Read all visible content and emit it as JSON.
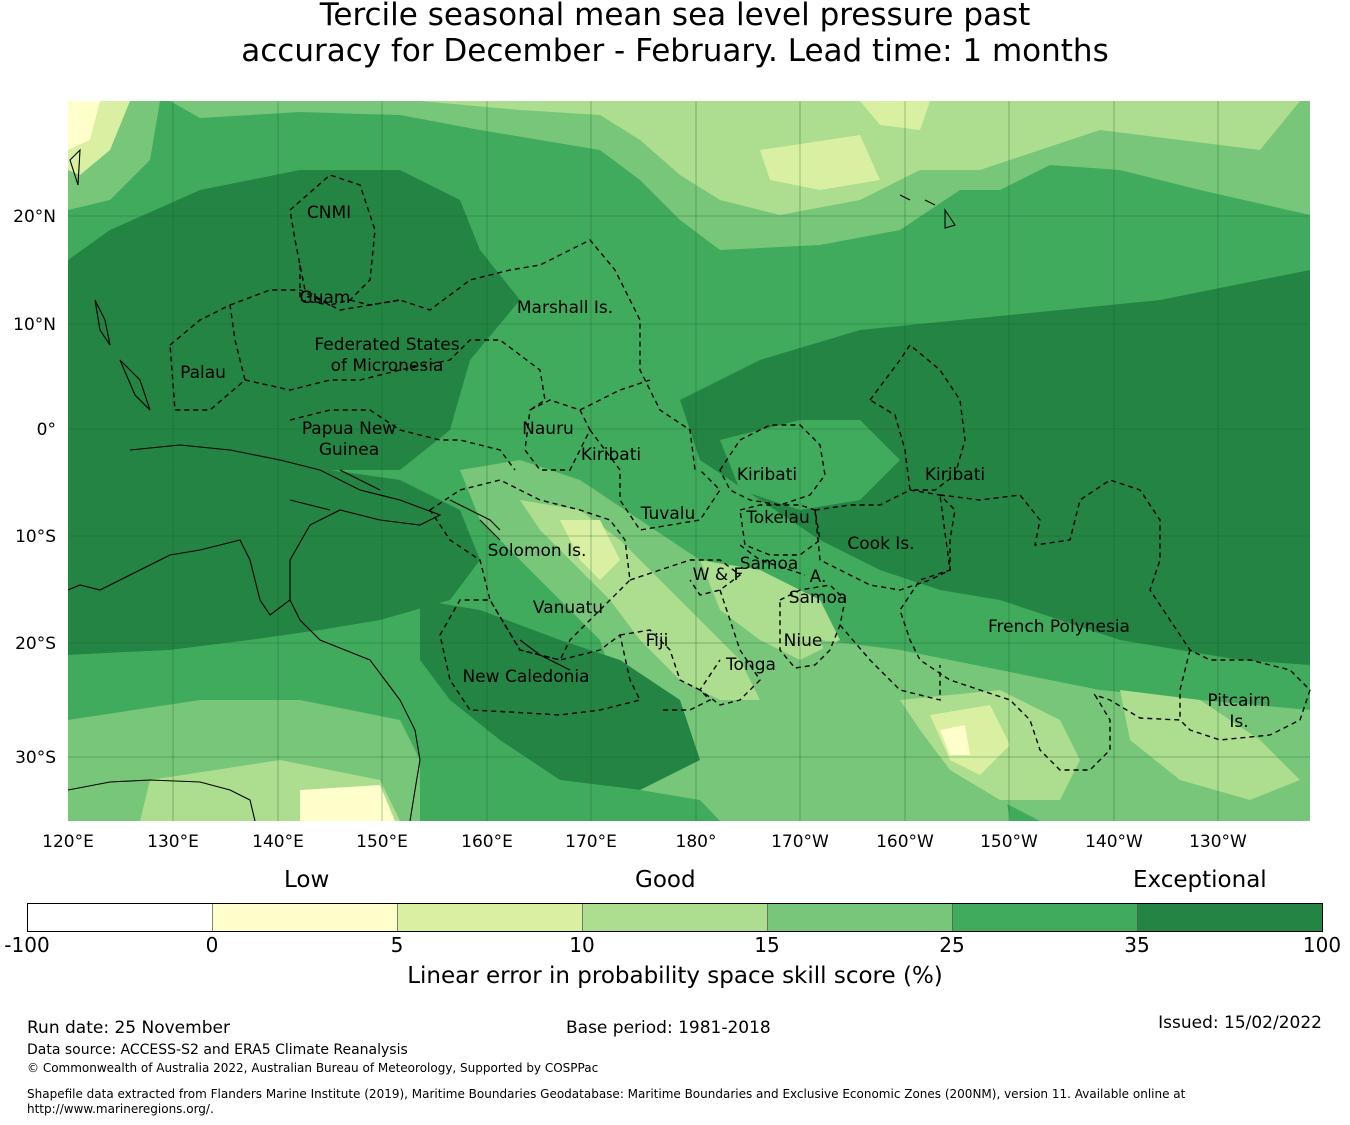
{
  "title": {
    "line1": "Tercile seasonal mean sea level pressure past",
    "line2": "accuracy for December - February. Lead time: 1 months"
  },
  "map": {
    "lon_ticks": [
      "120°E",
      "130°E",
      "140°E",
      "150°E",
      "160°E",
      "170°E",
      "180°",
      "170°W",
      "160°W",
      "150°W",
      "140°W",
      "130°W"
    ],
    "lat_ticks": [
      "20°N",
      "10°N",
      "0°",
      "10°S",
      "20°S",
      "30°S"
    ],
    "regions": [
      {
        "name": "CNMI"
      },
      {
        "name": "Guam"
      },
      {
        "name": "Marshall Is."
      },
      {
        "name": "Federated States"
      },
      {
        "name": "of Micronesia"
      },
      {
        "name": "Palau"
      },
      {
        "name": "Papua New"
      },
      {
        "name": "Guinea"
      },
      {
        "name": "Nauru"
      },
      {
        "name": "Kiribati"
      },
      {
        "name": "Kiribati"
      },
      {
        "name": "Kiribati"
      },
      {
        "name": "Tuvalu"
      },
      {
        "name": "Tokelau"
      },
      {
        "name": "Cook Is."
      },
      {
        "name": "Solomon Is."
      },
      {
        "name": "Samoa"
      },
      {
        "name": "W & F"
      },
      {
        "name": "A."
      },
      {
        "name": "Samoa"
      },
      {
        "name": "Vanuatu"
      },
      {
        "name": "Fiji"
      },
      {
        "name": "Niue"
      },
      {
        "name": "Tonga"
      },
      {
        "name": "French Polynesia"
      },
      {
        "name": "New Caledonia"
      },
      {
        "name": "Pitcairn"
      },
      {
        "name": "Is."
      }
    ]
  },
  "legend": {
    "captions": {
      "low": "Low",
      "good": "Good",
      "exceptional": "Exceptional"
    },
    "ticks": [
      "-100",
      "0",
      "5",
      "10",
      "15",
      "25",
      "35",
      "100"
    ],
    "colors": [
      "#ffffff",
      "#ffffcc",
      "#d9f0a3",
      "#addd8e",
      "#78c679",
      "#41ab5d",
      "#238443"
    ],
    "label": "Linear error in probability space skill score (%)"
  },
  "footer": {
    "run_date": "Run date: 25 November",
    "base_period": "Base period: 1981-2018",
    "issued": "Issued: 15/02/2022",
    "data_source": "Data source: ACCESS-S2 and ERA5 Climate Reanalysis",
    "copyright": "© Commonwealth of Australia 2022, Australian Bureau of Meteorology, Supported by COSPPac",
    "shapefile_line1": "Shapefile data extracted from Flanders Marine Institute (2019), Maritime Boundaries Geodatabase: Maritime Boundaries and Exclusive Economic Zones (200NM), version 11. Available online at",
    "shapefile_line2": "http://www.marineregions.org/."
  }
}
